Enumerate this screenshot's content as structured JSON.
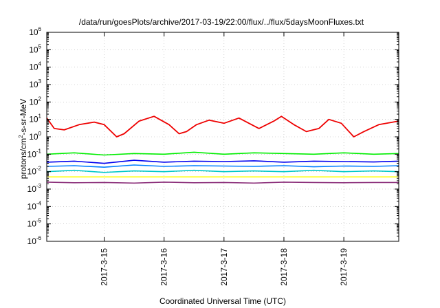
{
  "chart_data": {
    "type": "line",
    "title": "/data/run/goesPlots/archive/2017-03-19/22:00/flux/../flux/5daysMoonFluxes.txt",
    "xlabel": "Coordinated Universal Time (UTC)",
    "ylabel_parts": [
      "protons/cm",
      "2",
      "-s-sr-MeV"
    ],
    "y_scale": "log",
    "ylim": [
      1e-06,
      1000000.0
    ],
    "y_ticks": [
      {
        "base": "10",
        "exp": "6"
      },
      {
        "base": "10",
        "exp": "5"
      },
      {
        "base": "10",
        "exp": "4"
      },
      {
        "base": "10",
        "exp": "3"
      },
      {
        "base": "10",
        "exp": "2"
      },
      {
        "base": "10",
        "exp": "1"
      },
      {
        "base": "10",
        "exp": "0"
      },
      {
        "base": "10",
        "exp": "-1"
      },
      {
        "base": "10",
        "exp": "-2"
      },
      {
        "base": "10",
        "exp": "-3"
      },
      {
        "base": "10",
        "exp": "-4"
      },
      {
        "base": "10",
        "exp": "-5"
      },
      {
        "base": "10",
        "exp": "-6"
      }
    ],
    "x_range_days": [
      "2017-03-14T01:00",
      "2017-03-19T22:00"
    ],
    "x_ticks": [
      "2017-3-15",
      "2017-3-16",
      "2017-3-17",
      "2017-3-18",
      "2017-3-19"
    ],
    "grid": true,
    "legend": "none",
    "series": [
      {
        "color": "#ee0000",
        "x": [
          "2017-03-14T01:00",
          "2017-03-14T04:00",
          "2017-03-14T08:00",
          "2017-03-14T14:00",
          "2017-03-14T20:00",
          "2017-03-15T00:00",
          "2017-03-15T05:00",
          "2017-03-15T08:00",
          "2017-03-15T14:00",
          "2017-03-15T20:00",
          "2017-03-16T02:00",
          "2017-03-16T06:00",
          "2017-03-16T09:00",
          "2017-03-16T13:00",
          "2017-03-16T18:00",
          "2017-03-17T00:00",
          "2017-03-17T06:00",
          "2017-03-17T10:00",
          "2017-03-17T14:00",
          "2017-03-17T20:00",
          "2017-03-17T23:00",
          "2017-03-18T04:00",
          "2017-03-18T09:00",
          "2017-03-18T14:00",
          "2017-03-18T18:00",
          "2017-03-18T23:00",
          "2017-03-19T04:00",
          "2017-03-19T08:00",
          "2017-03-19T14:00",
          "2017-03-19T22:00"
        ],
        "values": [
          12,
          3,
          2.5,
          5,
          7,
          5,
          1,
          1.5,
          8,
          15,
          5,
          1.5,
          2,
          5,
          9,
          6,
          12,
          6,
          3,
          8,
          15,
          5,
          2,
          3,
          10,
          6,
          1,
          2,
          5,
          8
        ]
      },
      {
        "color": "#00ee00",
        "x": [
          "2017-03-14T01:00",
          "2017-03-14T12:00",
          "2017-03-15T00:00",
          "2017-03-15T12:00",
          "2017-03-16T00:00",
          "2017-03-16T12:00",
          "2017-03-17T00:00",
          "2017-03-17T12:00",
          "2017-03-18T00:00",
          "2017-03-18T12:00",
          "2017-03-19T00:00",
          "2017-03-19T12:00",
          "2017-03-19T22:00"
        ],
        "values": [
          0.1,
          0.12,
          0.09,
          0.11,
          0.1,
          0.13,
          0.1,
          0.12,
          0.11,
          0.1,
          0.12,
          0.1,
          0.11
        ]
      },
      {
        "color": "#00c8c8",
        "x": [
          "2017-03-14T01:00",
          "2017-03-14T12:00",
          "2017-03-15T00:00",
          "2017-03-15T12:00",
          "2017-03-16T00:00",
          "2017-03-16T12:00",
          "2017-03-17T00:00",
          "2017-03-17T12:00",
          "2017-03-18T00:00",
          "2017-03-18T12:00",
          "2017-03-19T00:00",
          "2017-03-19T12:00",
          "2017-03-19T22:00"
        ],
        "values": [
          0.01,
          0.012,
          0.009,
          0.011,
          0.01,
          0.012,
          0.01,
          0.011,
          0.01,
          0.012,
          0.01,
          0.011,
          0.01
        ]
      },
      {
        "color": "#0000ee",
        "x": [
          "2017-03-14T01:00",
          "2017-03-14T12:00",
          "2017-03-15T00:00",
          "2017-03-15T12:00",
          "2017-03-16T00:00",
          "2017-03-16T12:00",
          "2017-03-17T00:00",
          "2017-03-17T12:00",
          "2017-03-18T00:00",
          "2017-03-18T12:00",
          "2017-03-19T00:00",
          "2017-03-19T12:00",
          "2017-03-19T22:00"
        ],
        "values": [
          0.035,
          0.04,
          0.03,
          0.045,
          0.035,
          0.04,
          0.038,
          0.042,
          0.035,
          0.04,
          0.038,
          0.036,
          0.04
        ]
      },
      {
        "color": "#0080ff",
        "x": [
          "2017-03-14T01:00",
          "2017-03-14T12:00",
          "2017-03-15T00:00",
          "2017-03-15T12:00",
          "2017-03-16T00:00",
          "2017-03-16T12:00",
          "2017-03-17T00:00",
          "2017-03-17T12:00",
          "2017-03-18T00:00",
          "2017-03-18T12:00",
          "2017-03-19T00:00",
          "2017-03-19T12:00",
          "2017-03-19T22:00"
        ],
        "values": [
          0.02,
          0.022,
          0.018,
          0.024,
          0.02,
          0.022,
          0.021,
          0.02,
          0.022,
          0.019,
          0.021,
          0.02,
          0.022
        ]
      },
      {
        "color": "#ffff00",
        "x": [
          "2017-03-14T01:00",
          "2017-03-19T22:00"
        ],
        "values": [
          0.005,
          0.005
        ]
      },
      {
        "color": "#8b2f7a",
        "x": [
          "2017-03-14T01:00",
          "2017-03-14T12:00",
          "2017-03-15T00:00",
          "2017-03-15T12:00",
          "2017-03-16T00:00",
          "2017-03-16T12:00",
          "2017-03-17T00:00",
          "2017-03-17T12:00",
          "2017-03-18T00:00",
          "2017-03-18T12:00",
          "2017-03-19T00:00",
          "2017-03-19T12:00",
          "2017-03-19T22:00"
        ],
        "values": [
          0.0025,
          0.0023,
          0.0024,
          0.0022,
          0.0025,
          0.0023,
          0.0024,
          0.0022,
          0.0025,
          0.0024,
          0.0023,
          0.0024,
          0.0024
        ]
      }
    ]
  }
}
